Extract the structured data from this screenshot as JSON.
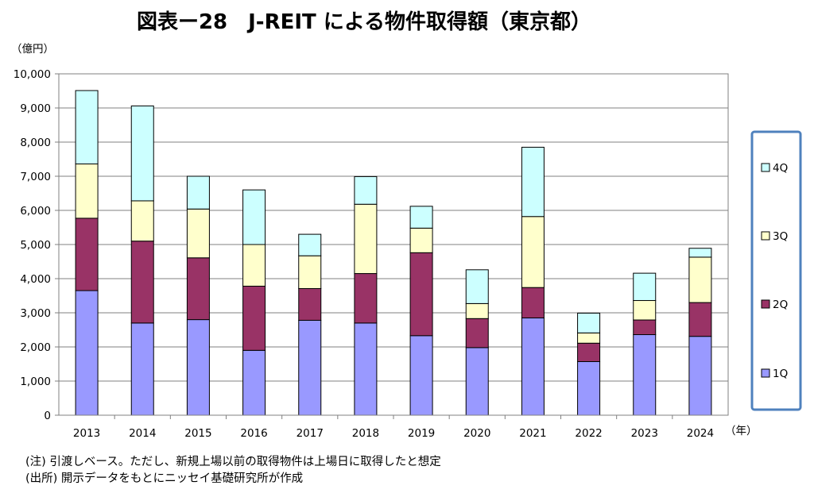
{
  "chart_data": {
    "type": "bar",
    "stacked": true,
    "title": "図表ー28　J-REIT による物件取得額（東京都）",
    "ylabel": "（億円）",
    "xlabel": "（年）",
    "ylim": [
      0,
      10000
    ],
    "yticks": [
      "0",
      "1,000",
      "2,000",
      "3,000",
      "4,000",
      "5,000",
      "6,000",
      "7,000",
      "8,000",
      "9,000",
      "10,000"
    ],
    "categories": [
      "2013",
      "2014",
      "2015",
      "2016",
      "2017",
      "2018",
      "2019",
      "2020",
      "2021",
      "2022",
      "2023",
      "2024"
    ],
    "series": [
      {
        "name": "1Q",
        "color": "#9999FF",
        "values": [
          3650,
          2700,
          2800,
          1900,
          2780,
          2700,
          2330,
          1980,
          2850,
          1570,
          2360,
          2310
        ]
      },
      {
        "name": "2Q",
        "color": "#993366",
        "values": [
          2120,
          2400,
          1810,
          1880,
          930,
          1450,
          2430,
          850,
          890,
          540,
          430,
          990
        ]
      },
      {
        "name": "3Q",
        "color": "#FFFFCC",
        "values": [
          1590,
          1180,
          1430,
          1220,
          960,
          2030,
          720,
          440,
          2080,
          300,
          570,
          1330
        ]
      },
      {
        "name": "4Q",
        "color": "#CCFFFF",
        "values": [
          2150,
          2780,
          960,
          1600,
          630,
          810,
          640,
          990,
          2030,
          580,
          800,
          260
        ]
      }
    ],
    "grid": true,
    "legend_position": "right"
  },
  "notes": [
    "(注) 引渡しベース。ただし、新規上場以前の取得物件は上場日に取得したと想定",
    "(出所) 開示データをもとにニッセイ基礎研究所が作成"
  ]
}
